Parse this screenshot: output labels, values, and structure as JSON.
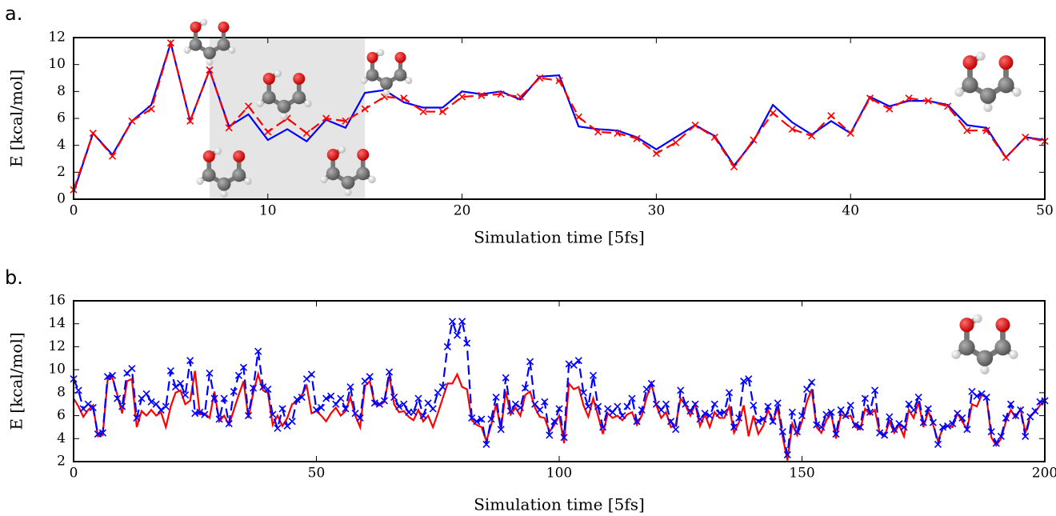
{
  "chart_data": [
    {
      "type": "line",
      "panel_label": "a.",
      "x_label": "Simulation time [5fs]",
      "y_label": "E [kcal/mol]",
      "xlim": [
        0,
        50
      ],
      "ylim": [
        0,
        12
      ],
      "xticks": [
        0,
        10,
        20,
        30,
        40,
        50
      ],
      "yticks": [
        0,
        2,
        4,
        6,
        8,
        10,
        12
      ],
      "highlight_xrange": [
        7,
        15
      ],
      "highlight_color": "#e5e5e5",
      "x": [
        0,
        1,
        2,
        3,
        4,
        5,
        6,
        7,
        8,
        9,
        10,
        11,
        12,
        13,
        14,
        15,
        16,
        17,
        18,
        19,
        20,
        21,
        22,
        23,
        24,
        25,
        26,
        27,
        28,
        29,
        30,
        31,
        32,
        33,
        34,
        35,
        36,
        37,
        38,
        39,
        40,
        41,
        42,
        43,
        44,
        45,
        46,
        47,
        48,
        49,
        50
      ],
      "series": [
        {
          "color": "#0000ff",
          "linestyle": "solid",
          "marker": "none",
          "values": [
            0.5,
            4.9,
            3.3,
            5.8,
            7.0,
            11.6,
            5.8,
            9.6,
            5.4,
            6.3,
            4.4,
            5.2,
            4.3,
            5.9,
            5.3,
            7.9,
            8.1,
            7.2,
            6.8,
            6.8,
            8.0,
            7.8,
            8.0,
            7.4,
            9.1,
            9.2,
            5.4,
            5.2,
            5.1,
            4.6,
            3.7,
            4.6,
            5.5,
            4.7,
            2.5,
            4.3,
            7.0,
            5.7,
            4.8,
            5.8,
            4.9,
            7.6,
            6.9,
            7.3,
            7.3,
            7.0,
            5.5,
            5.3,
            3.1,
            4.6,
            4.4
          ]
        },
        {
          "color": "#ff0000",
          "linestyle": "dashed",
          "marker": "x",
          "values": [
            0.7,
            4.9,
            3.2,
            5.8,
            6.7,
            11.6,
            5.8,
            9.6,
            5.3,
            6.9,
            5.0,
            6.0,
            4.9,
            6.0,
            5.8,
            6.7,
            7.6,
            7.5,
            6.5,
            6.5,
            7.6,
            7.7,
            7.8,
            7.6,
            9.0,
            8.8,
            6.1,
            5.0,
            4.9,
            4.5,
            3.4,
            4.2,
            5.5,
            4.6,
            2.4,
            4.4,
            6.4,
            5.2,
            4.7,
            6.2,
            4.9,
            7.5,
            6.7,
            7.5,
            7.3,
            6.9,
            5.1,
            5.1,
            3.1,
            4.6,
            4.3
          ]
        }
      ]
    },
    {
      "type": "line",
      "panel_label": "b.",
      "x_label": "Simulation time [5fs]",
      "y_label": "E [kcal/mol]",
      "xlim": [
        0,
        200
      ],
      "ylim": [
        2,
        16
      ],
      "xticks": [
        0,
        50,
        100,
        150,
        200
      ],
      "yticks": [
        2,
        4,
        6,
        8,
        10,
        12,
        14,
        16
      ],
      "x": [
        0,
        1,
        2,
        3,
        4,
        5,
        6,
        7,
        8,
        9,
        10,
        11,
        12,
        13,
        14,
        15,
        16,
        17,
        18,
        19,
        20,
        21,
        22,
        23,
        24,
        25,
        26,
        27,
        28,
        29,
        30,
        31,
        32,
        33,
        34,
        35,
        36,
        37,
        38,
        39,
        40,
        41,
        42,
        43,
        44,
        45,
        46,
        47,
        48,
        49,
        50,
        51,
        52,
        53,
        54,
        55,
        56,
        57,
        58,
        59,
        60,
        61,
        62,
        63,
        64,
        65,
        66,
        67,
        68,
        69,
        70,
        71,
        72,
        73,
        74,
        75,
        76,
        77,
        78,
        79,
        80,
        81,
        82,
        83,
        84,
        85,
        86,
        87,
        88,
        89,
        90,
        91,
        92,
        93,
        94,
        95,
        96,
        97,
        98,
        99,
        100,
        101,
        102,
        103,
        104,
        105,
        106,
        107,
        108,
        109,
        110,
        111,
        112,
        113,
        114,
        115,
        116,
        117,
        118,
        119,
        120,
        121,
        122,
        123,
        124,
        125,
        126,
        127,
        128,
        129,
        130,
        131,
        132,
        133,
        134,
        135,
        136,
        137,
        138,
        139,
        140,
        141,
        142,
        143,
        144,
        145,
        146,
        147,
        148,
        149,
        150,
        151,
        152,
        153,
        154,
        155,
        156,
        157,
        158,
        159,
        160,
        161,
        162,
        163,
        164,
        165,
        166,
        167,
        168,
        169,
        170,
        171,
        172,
        173,
        174,
        175,
        176,
        177,
        178,
        179,
        180,
        181,
        182,
        183,
        184,
        185,
        186,
        187,
        188,
        189,
        190,
        191,
        192,
        193,
        194,
        195,
        196,
        197,
        198,
        199,
        200
      ],
      "series": [
        {
          "color": "#ff0000",
          "linestyle": "solid",
          "marker": "none",
          "values": [
            7.5,
            6.8,
            5.9,
            6.5,
            6.9,
            4.2,
            4.3,
            9.1,
            9.3,
            7.8,
            6.2,
            9.0,
            9.2,
            5.0,
            6.4,
            6.0,
            6.5,
            6.0,
            6.3,
            5.0,
            6.8,
            8.0,
            8.2,
            7.0,
            7.3,
            9.9,
            6.1,
            6.2,
            5.8,
            8.1,
            5.5,
            6.0,
            5.2,
            6.5,
            7.8,
            9.0,
            5.8,
            8.0,
            9.6,
            8.2,
            8.0,
            5.2,
            6.0,
            5.1,
            5.8,
            7.0,
            7.2,
            7.8,
            8.6,
            6.2,
            6.4,
            6.0,
            5.5,
            6.2,
            6.7,
            6.0,
            6.4,
            7.6,
            6.0,
            5.0,
            8.6,
            9.0,
            7.0,
            6.9,
            7.2,
            9.5,
            7.0,
            6.3,
            6.4,
            5.9,
            5.6,
            6.5,
            5.5,
            6.0,
            5.0,
            6.2,
            7.5,
            8.8,
            8.8,
            9.6,
            8.5,
            8.3,
            5.6,
            5.2,
            5.0,
            3.8,
            5.2,
            7.0,
            4.8,
            8.1,
            6.1,
            6.7,
            6.0,
            7.8,
            8.1,
            6.7,
            5.9,
            5.8,
            4.6,
            5.2,
            6.0,
            3.6,
            8.8,
            8.3,
            8.5,
            6.9,
            5.9,
            7.5,
            6.0,
            4.4,
            6.2,
            5.8,
            6.0,
            5.6,
            6.1,
            6.3,
            5.2,
            6.0,
            7.6,
            8.8,
            6.9,
            5.8,
            6.3,
            5.0,
            5.2,
            7.5,
            6.9,
            6.0,
            7.0,
            5.1,
            6.1,
            5.0,
            6.3,
            5.8,
            5.8,
            6.8,
            4.5,
            5.4,
            6.9,
            4.2,
            6.0,
            4.4,
            5.1,
            6.5,
            5.5,
            6.7,
            4.2,
            2.1,
            5.3,
            4.3,
            5.5,
            7.2,
            8.3,
            5.0,
            4.5,
            5.6,
            6.2,
            4.0,
            6.1,
            5.9,
            6.0,
            5.0,
            4.8,
            6.6,
            6.1,
            6.5,
            4.5,
            4.2,
            5.5,
            4.5,
            5.2,
            4.2,
            6.5,
            5.8,
            7.2,
            5.0,
            6.4,
            5.2,
            3.8,
            4.9,
            5.1,
            5.0,
            6.2,
            5.5,
            4.8,
            7.0,
            6.8,
            7.8,
            7.6,
            4.1,
            3.4,
            4.0,
            5.5,
            6.5,
            5.8,
            6.6,
            4.5,
            6.0,
            6.3,
            6.9,
            7.2
          ]
        },
        {
          "color": "#0000ff",
          "linestyle": "dashed",
          "marker": "x",
          "values": [
            9.2,
            8.2,
            6.6,
            7.0,
            6.7,
            4.4,
            4.5,
            9.4,
            9.5,
            7.5,
            6.8,
            9.7,
            10.1,
            5.8,
            7.5,
            7.9,
            7.2,
            7.0,
            6.5,
            6.8,
            9.9,
            8.5,
            8.8,
            7.8,
            10.8,
            6.2,
            6.3,
            6.1,
            9.7,
            7.5,
            5.7,
            7.5,
            5.3,
            8.1,
            9.5,
            10.2,
            6.0,
            8.4,
            11.6,
            8.5,
            8.3,
            6.1,
            4.9,
            6.6,
            5.1,
            5.5,
            7.4,
            7.6,
            9.2,
            9.6,
            6.5,
            6.7,
            7.5,
            7.7,
            7.0,
            7.5,
            6.6,
            8.5,
            6.2,
            5.8,
            9.0,
            9.4,
            7.1,
            7.0,
            7.3,
            9.8,
            7.6,
            6.8,
            7.0,
            6.3,
            6.3,
            7.5,
            6.0,
            7.1,
            6.6,
            8.0,
            8.5,
            12.0,
            14.2,
            13.0,
            14.2,
            12.3,
            5.8,
            5.5,
            5.7,
            3.5,
            5.7,
            7.6,
            4.8,
            9.3,
            6.4,
            7.0,
            6.7,
            8.4,
            10.7,
            7.0,
            6.5,
            7.2,
            4.3,
            5.5,
            6.6,
            4.1,
            10.5,
            10.4,
            10.8,
            8.0,
            6.8,
            9.5,
            6.8,
            5.0,
            6.6,
            6.3,
            6.8,
            6.0,
            6.8,
            7.5,
            5.5,
            6.5,
            8.3,
            8.8,
            7.0,
            6.5,
            7.0,
            5.5,
            4.8,
            8.2,
            7.0,
            6.4,
            7.0,
            5.7,
            6.2,
            6.0,
            7.0,
            6.2,
            6.3,
            8.0,
            5.0,
            5.8,
            9.0,
            9.2,
            6.9,
            5.5,
            5.7,
            6.8,
            5.5,
            7.1,
            4.6,
            2.6,
            6.3,
            4.6,
            6.0,
            8.3,
            8.9,
            5.2,
            5.0,
            6.1,
            6.3,
            4.4,
            6.5,
            6.0,
            6.9,
            5.2,
            5.0,
            7.5,
            6.3,
            8.2,
            4.5,
            4.3,
            5.9,
            4.8,
            5.3,
            5.0,
            7.0,
            6.5,
            7.6,
            5.4,
            6.6,
            5.4,
            3.5,
            5.0,
            5.1,
            5.3,
            6.2,
            5.8,
            4.8,
            8.1,
            7.7,
            7.9,
            7.6,
            4.6,
            3.6,
            4.2,
            5.8,
            7.0,
            6.0,
            6.5,
            4.2,
            5.9,
            6.4,
            7.2,
            7.3
          ]
        }
      ]
    }
  ]
}
